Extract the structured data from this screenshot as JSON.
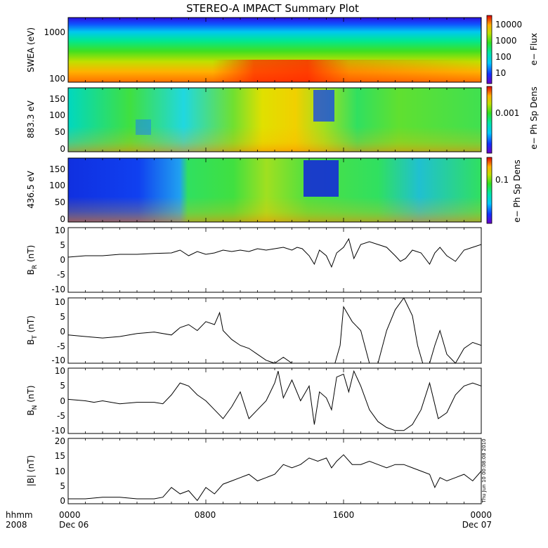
{
  "title": "STEREO-A IMPACT Summary Plot",
  "timestamp": "Thu Jun 10 00:08:08 2010",
  "x_axis": {
    "row_label": "hhmm",
    "year": "2008",
    "ticks": [
      "0000",
      "0800",
      "1600",
      "0000"
    ],
    "dates": [
      "Dec 06",
      "",
      "",
      "Dec 07"
    ]
  },
  "panels": [
    {
      "id": "swea",
      "ylabel": "SWEA (eV)",
      "yticks": [
        "1000",
        "100"
      ],
      "colorbar_label": "e− Flux",
      "colorbar_ticks": [
        "10000",
        "1000",
        "100",
        "10"
      ]
    },
    {
      "id": "pad883",
      "ylabel": "883.3 eV",
      "yticks": [
        "150",
        "100",
        "50",
        "0"
      ],
      "colorbar_label": "e− Ph Sp Dens",
      "colorbar_ticks": [
        "0.001"
      ]
    },
    {
      "id": "pad436",
      "ylabel": "436.5 eV",
      "yticks": [
        "150",
        "100",
        "50",
        "0"
      ],
      "colorbar_label": "e− Ph Sp Dens",
      "colorbar_ticks": [
        "0.1"
      ]
    },
    {
      "id": "br",
      "ylabel": "B",
      "ylabel_sub": "R",
      "ylabel_unit": " (nT)",
      "yticks": [
        "10",
        "5",
        "0",
        "-5",
        "-10"
      ]
    },
    {
      "id": "bt",
      "ylabel": "B",
      "ylabel_sub": "T",
      "ylabel_unit": " (nT)",
      "yticks": [
        "10",
        "5",
        "0",
        "-5",
        "-10"
      ]
    },
    {
      "id": "bn",
      "ylabel": "B",
      "ylabel_sub": "N",
      "ylabel_unit": " (nT)",
      "yticks": [
        "10",
        "5",
        "0",
        "-5",
        "-10"
      ]
    },
    {
      "id": "bmag",
      "ylabel": "|B| (nT)",
      "yticks": [
        "20",
        "15",
        "10",
        "5",
        "0"
      ]
    }
  ],
  "chart_data": [
    {
      "type": "heatmap",
      "title": "STEREO-A IMPACT Summary Plot",
      "ylabel": "SWEA (eV)",
      "ylog": true,
      "ylim": [
        90,
        2000
      ],
      "xlim": [
        0,
        24
      ],
      "colorbar_label": "e− Flux",
      "colorbar_log": true,
      "colorbar_range": [
        3,
        30000
      ],
      "note": "Flux decreases with energy; enhanced near 1000-1400 at low energies"
    },
    {
      "type": "heatmap",
      "ylabel": "883.3 eV",
      "ylim": [
        0,
        180
      ],
      "xlim": [
        0,
        24
      ],
      "colorbar_label": "e− Ph Sp Dens"
    },
    {
      "type": "heatmap",
      "ylabel": "436.5 eV",
      "ylim": [
        0,
        180
      ],
      "xlim": [
        0,
        24
      ],
      "colorbar_label": "e− Ph Sp Dens"
    },
    {
      "type": "line",
      "ylabel": "BR (nT)",
      "ylim": [
        -12,
        11
      ],
      "xlim": [
        0,
        24
      ],
      "x": [
        0,
        1,
        2,
        3,
        4,
        5,
        6,
        6.5,
        7,
        7.5,
        8,
        8.5,
        9,
        9.5,
        10,
        10.5,
        11,
        11.5,
        12,
        12.5,
        13,
        13.3,
        13.6,
        14,
        14.3,
        14.6,
        15,
        15.3,
        15.6,
        16,
        16.3,
        16.6,
        17,
        17.5,
        18,
        18.5,
        19,
        19.3,
        19.6,
        20,
        20.5,
        21,
        21.3,
        21.6,
        22,
        22.5,
        23,
        23.5,
        24
      ],
      "y": [
        0.5,
        1,
        1,
        1.5,
        1.5,
        1.8,
        2,
        3,
        1,
        2.5,
        1.5,
        2,
        3,
        2.5,
        3,
        2.5,
        3.5,
        3,
        3.5,
        4,
        3,
        4,
        3.5,
        1,
        -2,
        3,
        1,
        -3,
        2,
        4,
        7,
        0,
        5,
        6,
        5,
        4,
        1,
        -1,
        0,
        3,
        2,
        -2,
        2,
        4,
        1,
        -1,
        3,
        4,
        5
      ]
    },
    {
      "type": "line",
      "ylabel": "BT (nT)",
      "ylim": [
        -11,
        11
      ],
      "xlim": [
        0,
        24
      ],
      "x": [
        0,
        1,
        2,
        3,
        4,
        5,
        6,
        6.5,
        7,
        7.5,
        8,
        8.5,
        8.8,
        9,
        9.5,
        10,
        10.5,
        11,
        11.5,
        12,
        12.5,
        13,
        13.5,
        14,
        14.5,
        15,
        15.5,
        15.8,
        16,
        16.5,
        17,
        17.5,
        18,
        18.5,
        19,
        19.5,
        20,
        20.3,
        20.6,
        21,
        21.3,
        21.6,
        22,
        22.5,
        23,
        23.5,
        24
      ],
      "y": [
        -1.5,
        -2,
        -2.5,
        -2,
        -1,
        -0.5,
        -1.5,
        1,
        2,
        0,
        3,
        2,
        6,
        0,
        -3,
        -5,
        -6,
        -8,
        -10,
        -11,
        -9,
        -11,
        -11,
        -11,
        -11,
        -11,
        -11,
        -5,
        8,
        3,
        0,
        -11,
        -11,
        0,
        7,
        11,
        5,
        -5,
        -11,
        -11,
        -5,
        0,
        -8,
        -11,
        -6,
        -4,
        -5
      ]
    },
    {
      "type": "line",
      "ylabel": "BN (nT)",
      "ylim": [
        -11,
        11
      ],
      "xlim": [
        0,
        24
      ],
      "x": [
        0,
        1,
        1.5,
        2,
        3,
        4,
        5,
        5.5,
        6,
        6.5,
        7,
        7.5,
        8,
        8.5,
        9,
        9.5,
        10,
        10.5,
        11,
        11.5,
        12,
        12.2,
        12.5,
        13,
        13.5,
        14,
        14.3,
        14.6,
        15,
        15.3,
        15.6,
        16,
        16.3,
        16.6,
        17,
        17.5,
        18,
        18.5,
        19,
        19.5,
        20,
        20.5,
        21,
        21.5,
        22,
        22.5,
        23,
        23.5,
        24
      ],
      "y": [
        0.5,
        0,
        -0.5,
        0,
        -1,
        -0.5,
        -0.5,
        -1,
        2,
        6,
        5,
        2,
        0,
        -3,
        -6,
        -2,
        3,
        -6,
        -3,
        0,
        6,
        10,
        1,
        7,
        0,
        5,
        -8,
        3,
        1,
        -3,
        8,
        9,
        3,
        10,
        5,
        -3,
        -7,
        -9,
        -10,
        -10,
        -8,
        -3,
        6,
        -6,
        -4,
        2,
        5,
        6,
        5
      ]
    },
    {
      "type": "line",
      "ylabel": "|B| (nT)",
      "ylim": [
        0,
        20
      ],
      "xlim": [
        0,
        24
      ],
      "x": [
        0,
        1,
        2,
        3,
        4,
        5,
        5.5,
        6,
        6.5,
        7,
        7.5,
        8,
        8.5,
        9,
        9.5,
        10,
        10.5,
        11,
        11.5,
        12,
        12.5,
        13,
        13.5,
        14,
        14.5,
        15,
        15.3,
        15.6,
        16,
        16.5,
        17,
        17.5,
        18,
        18.5,
        19,
        19.5,
        20,
        20.5,
        21,
        21.3,
        21.6,
        22,
        22.5,
        23,
        23.5,
        24
      ],
      "y": [
        1.5,
        1.5,
        2,
        2,
        1.5,
        1.5,
        2,
        5,
        3,
        4,
        1,
        5,
        3,
        6,
        7,
        8,
        9,
        7,
        8,
        9,
        12,
        11,
        12,
        14,
        13,
        14,
        11,
        13,
        15,
        12,
        12,
        13,
        12,
        11,
        12,
        12,
        11,
        10,
        9,
        5,
        8,
        7,
        8,
        9,
        7,
        10
      ]
    }
  ]
}
